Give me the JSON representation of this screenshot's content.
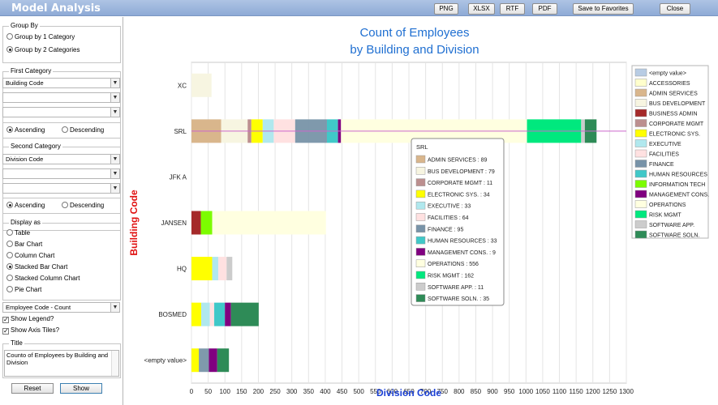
{
  "app": {
    "title": "Model Analysis"
  },
  "toolbar": {
    "png": "PNG",
    "xlsx": "XLSX",
    "rtf": "RTF",
    "pdf": "PDF",
    "favorites": "Save to Favorites",
    "close": "Close"
  },
  "panel": {
    "group_by": {
      "legend": "Group By",
      "opt1": "Group by 1 Category",
      "opt2": "Group by 2 Categories",
      "selected": 2
    },
    "first_category": {
      "legend": "First Category",
      "value": "Building Code",
      "ascending": "Ascending",
      "descending": "Descending"
    },
    "second_category": {
      "legend": "Second Category",
      "value": "Division Code",
      "ascending": "Ascending",
      "descending": "Descending"
    },
    "display_as": {
      "legend": "Display as",
      "options": [
        "Table",
        "Bar Chart",
        "Column Chart",
        "Stacked Bar Chart",
        "Stacked Column Chart",
        "Pie Chart"
      ],
      "selected": 3
    },
    "measure": "Employee Code - Count",
    "show_legend": "Show Legend?",
    "show_axis_tiles": "Show Axis Tiles?",
    "title_legend": "Title",
    "title_text": "Counto of Employees by Building and Division",
    "reset": "Reset",
    "show": "Show"
  },
  "chart_data": {
    "type": "bar",
    "stacked": true,
    "orientation": "horizontal",
    "title": [
      "Count of Employees",
      "by Building and Division"
    ],
    "xlabel": "Division Code",
    "ylabel": "Building Code",
    "xlim": [
      0,
      1300
    ],
    "xticks": [
      0,
      50,
      100,
      150,
      200,
      250,
      300,
      350,
      400,
      450,
      500,
      550,
      600,
      650,
      700,
      750,
      800,
      850,
      900,
      950,
      1000,
      1050,
      1100,
      1150,
      1200,
      1250,
      1300
    ],
    "categories": [
      "XC",
      "SRL",
      "JFK A",
      "JANSEN",
      "HQ",
      "BOSMED",
      "<empty value>"
    ],
    "series": [
      {
        "name": "<empty value>",
        "color": "#b8cce4",
        "values": [
          0,
          0,
          0,
          0,
          0,
          0,
          0
        ]
      },
      {
        "name": "ACCESSORIES",
        "color": "#ffffcc",
        "values": [
          0,
          0,
          0,
          0,
          0,
          0,
          0
        ]
      },
      {
        "name": "ADMIN SERVICES",
        "color": "#d9b68c",
        "values": [
          0,
          89,
          0,
          0,
          0,
          0,
          0
        ]
      },
      {
        "name": "BUS DEVELOPMENT",
        "color": "#f7f5e1",
        "values": [
          60,
          79,
          0,
          0,
          0,
          0,
          0
        ]
      },
      {
        "name": "BUSINESS ADMIN",
        "color": "#a52a2a",
        "values": [
          0,
          0,
          0,
          28,
          0,
          0,
          0
        ]
      },
      {
        "name": "CORPORATE MGMT",
        "color": "#bc8f8f",
        "values": [
          0,
          11,
          0,
          0,
          0,
          0,
          0
        ]
      },
      {
        "name": "ELECTRONIC SYS.",
        "color": "#ffff00",
        "values": [
          0,
          34,
          0,
          0,
          62,
          29,
          22
        ]
      },
      {
        "name": "EXECUTIVE",
        "color": "#b0e8ee",
        "values": [
          0,
          33,
          0,
          0,
          18,
          26,
          0
        ]
      },
      {
        "name": "FACILITIES",
        "color": "#ffe1e1",
        "values": [
          0,
          64,
          0,
          0,
          25,
          13,
          0
        ]
      },
      {
        "name": "FINANCE",
        "color": "#7893a8",
        "values": [
          0,
          95,
          0,
          0,
          0,
          0,
          30
        ]
      },
      {
        "name": "HUMAN RESOURCES",
        "color": "#40c8c8",
        "values": [
          0,
          33,
          0,
          0,
          0,
          32,
          0
        ]
      },
      {
        "name": "INFORMATION TECH",
        "color": "#7cfc00",
        "values": [
          0,
          0,
          0,
          34,
          0,
          0,
          0
        ]
      },
      {
        "name": "MANAGEMENT CONS.",
        "color": "#800080",
        "values": [
          0,
          9,
          0,
          0,
          0,
          18,
          25
        ]
      },
      {
        "name": "OPERATIONS",
        "color": "#ffffe0",
        "values": [
          0,
          556,
          0,
          340,
          0,
          0,
          0
        ]
      },
      {
        "name": "RISK MGMT",
        "color": "#00e87e",
        "values": [
          0,
          162,
          0,
          0,
          0,
          0,
          0
        ]
      },
      {
        "name": "SOFTWARE APP.",
        "color": "#cccccc",
        "values": [
          0,
          11,
          0,
          0,
          17,
          0,
          0
        ]
      },
      {
        "name": "SOFTWARE SOLN.",
        "color": "#2e8b57",
        "values": [
          0,
          35,
          0,
          0,
          0,
          83,
          35
        ]
      }
    ],
    "legend_position": "right",
    "hover_line_category": "SRL",
    "tooltip": {
      "title": "SRL",
      "entries": [
        {
          "label": "ADMIN SERVICES : 89",
          "color": "#d9b68c"
        },
        {
          "label": "BUS DEVELOPMENT : 79",
          "color": "#f7f5e1"
        },
        {
          "label": "CORPORATE MGMT : 11",
          "color": "#bc8f8f"
        },
        {
          "label": "ELECTRONIC SYS. : 34",
          "color": "#ffff00"
        },
        {
          "label": "EXECUTIVE : 33",
          "color": "#b0e8ee"
        },
        {
          "label": "FACILITIES : 64",
          "color": "#ffe1e1"
        },
        {
          "label": "FINANCE : 95",
          "color": "#7893a8"
        },
        {
          "label": "HUMAN RESOURCES : 33",
          "color": "#40c8c8"
        },
        {
          "label": "MANAGEMENT CONS. : 9",
          "color": "#800080"
        },
        {
          "label": "OPERATIONS : 556",
          "color": "#ffffe0"
        },
        {
          "label": "RISK MGMT : 162",
          "color": "#00e87e"
        },
        {
          "label": "SOFTWARE APP. : 11",
          "color": "#cccccc"
        },
        {
          "label": "SOFTWARE SOLN. : 35",
          "color": "#2e8b57"
        }
      ]
    }
  }
}
